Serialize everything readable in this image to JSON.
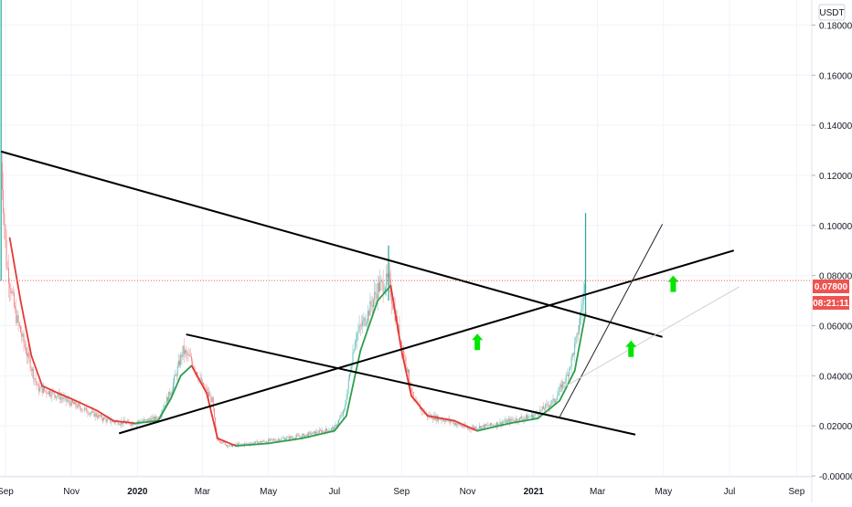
{
  "header": {
    "currency": "USDT"
  },
  "price_tag": {
    "value": "0.07800",
    "countdown": "08:21:11"
  },
  "colors": {
    "up": "#26a69a",
    "down": "#ef5350",
    "ma_up": "#2e9e4f",
    "ma_down": "#e53935",
    "trendline": "#000000",
    "thin_line": "#d0d0d0",
    "arrow": "#00e600",
    "price_line": "#ef5350",
    "grid": "#f0f3fa",
    "axis_text": "#131722"
  },
  "chart_data": {
    "type": "candlestick",
    "title": "",
    "xlabel": "",
    "ylabel": "",
    "x_range": [
      "2019-08-27",
      "2021-09-15"
    ],
    "ylim": [
      0,
      0.19
    ],
    "grid": true,
    "y_ticks": [
      "0.18000",
      "0.16000",
      "0.14000",
      "0.12000",
      "0.10000",
      "0.08000",
      "0.06000",
      "0.04000",
      "0.02000",
      "-0.00000"
    ],
    "y_tick_values": [
      0.18,
      0.16,
      0.14,
      0.12,
      0.1,
      0.08,
      0.06,
      0.04,
      0.02,
      0
    ],
    "x_ticks": [
      {
        "label": "Sep",
        "date": "2019-09-01",
        "bold": false
      },
      {
        "label": "Nov",
        "date": "2019-11-01",
        "bold": false
      },
      {
        "label": "2020",
        "date": "2020-01-01",
        "bold": true
      },
      {
        "label": "Mar",
        "date": "2020-03-01",
        "bold": false
      },
      {
        "label": "May",
        "date": "2020-05-01",
        "bold": false
      },
      {
        "label": "Jul",
        "date": "2020-07-01",
        "bold": false
      },
      {
        "label": "Sep",
        "date": "2020-09-01",
        "bold": false
      },
      {
        "label": "Nov",
        "date": "2020-11-01",
        "bold": false
      },
      {
        "label": "2021",
        "date": "2021-01-01",
        "bold": true
      },
      {
        "label": "Mar",
        "date": "2021-03-01",
        "bold": false
      },
      {
        "label": "May",
        "date": "2021-05-01",
        "bold": false
      },
      {
        "label": "Jul",
        "date": "2021-07-01",
        "bold": false
      },
      {
        "label": "Sep",
        "date": "2021-09-01",
        "bold": false
      }
    ],
    "last_price": 0.078,
    "price_path": [
      {
        "date": "2019-08-28",
        "price": 0.125
      },
      {
        "date": "2019-09-02",
        "price": 0.085
      },
      {
        "date": "2019-09-10",
        "price": 0.065
      },
      {
        "date": "2019-09-20",
        "price": 0.05
      },
      {
        "date": "2019-10-01",
        "price": 0.035
      },
      {
        "date": "2019-10-15",
        "price": 0.033
      },
      {
        "date": "2019-11-01",
        "price": 0.029
      },
      {
        "date": "2019-11-20",
        "price": 0.025
      },
      {
        "date": "2019-12-05",
        "price": 0.022
      },
      {
        "date": "2019-12-25",
        "price": 0.021
      },
      {
        "date": "2020-01-20",
        "price": 0.023
      },
      {
        "date": "2020-02-01",
        "price": 0.034
      },
      {
        "date": "2020-02-12",
        "price": 0.05
      },
      {
        "date": "2020-02-20",
        "price": 0.046
      },
      {
        "date": "2020-03-01",
        "price": 0.036
      },
      {
        "date": "2020-03-10",
        "price": 0.03
      },
      {
        "date": "2020-03-14",
        "price": 0.015
      },
      {
        "date": "2020-03-25",
        "price": 0.012
      },
      {
        "date": "2020-04-15",
        "price": 0.013
      },
      {
        "date": "2020-05-01",
        "price": 0.014
      },
      {
        "date": "2020-06-01",
        "price": 0.016
      },
      {
        "date": "2020-07-01",
        "price": 0.019
      },
      {
        "date": "2020-07-10",
        "price": 0.026
      },
      {
        "date": "2020-07-20",
        "price": 0.055
      },
      {
        "date": "2020-08-01",
        "price": 0.065
      },
      {
        "date": "2020-08-10",
        "price": 0.075
      },
      {
        "date": "2020-08-20",
        "price": 0.078
      },
      {
        "date": "2020-08-28",
        "price": 0.06
      },
      {
        "date": "2020-09-05",
        "price": 0.045
      },
      {
        "date": "2020-09-12",
        "price": 0.03
      },
      {
        "date": "2020-09-25",
        "price": 0.024
      },
      {
        "date": "2020-10-15",
        "price": 0.022
      },
      {
        "date": "2020-11-01",
        "price": 0.019
      },
      {
        "date": "2020-11-20",
        "price": 0.02
      },
      {
        "date": "2020-12-10",
        "price": 0.022
      },
      {
        "date": "2021-01-01",
        "price": 0.024
      },
      {
        "date": "2021-01-20",
        "price": 0.03
      },
      {
        "date": "2021-02-01",
        "price": 0.04
      },
      {
        "date": "2021-02-10",
        "price": 0.055
      },
      {
        "date": "2021-02-18",
        "price": 0.078
      }
    ],
    "ma_path": [
      {
        "date": "2019-09-05",
        "price": 0.095
      },
      {
        "date": "2019-09-15",
        "price": 0.07
      },
      {
        "date": "2019-09-25",
        "price": 0.048
      },
      {
        "date": "2019-10-05",
        "price": 0.036
      },
      {
        "date": "2019-10-20",
        "price": 0.033
      },
      {
        "date": "2019-11-05",
        "price": 0.03
      },
      {
        "date": "2019-11-25",
        "price": 0.026
      },
      {
        "date": "2019-12-10",
        "price": 0.022
      },
      {
        "date": "2019-12-30",
        "price": 0.021
      },
      {
        "date": "2020-01-20",
        "price": 0.022
      },
      {
        "date": "2020-02-01",
        "price": 0.031
      },
      {
        "date": "2020-02-10",
        "price": 0.04
      },
      {
        "date": "2020-02-20",
        "price": 0.044
      },
      {
        "date": "2020-03-05",
        "price": 0.033
      },
      {
        "date": "2020-03-15",
        "price": 0.015
      },
      {
        "date": "2020-04-01",
        "price": 0.012
      },
      {
        "date": "2020-05-01",
        "price": 0.013
      },
      {
        "date": "2020-06-01",
        "price": 0.015
      },
      {
        "date": "2020-07-01",
        "price": 0.018
      },
      {
        "date": "2020-07-12",
        "price": 0.024
      },
      {
        "date": "2020-07-25",
        "price": 0.05
      },
      {
        "date": "2020-08-10",
        "price": 0.07
      },
      {
        "date": "2020-08-22",
        "price": 0.076
      },
      {
        "date": "2020-09-01",
        "price": 0.05
      },
      {
        "date": "2020-09-10",
        "price": 0.032
      },
      {
        "date": "2020-09-25",
        "price": 0.024
      },
      {
        "date": "2020-10-20",
        "price": 0.022
      },
      {
        "date": "2020-11-10",
        "price": 0.018
      },
      {
        "date": "2020-12-10",
        "price": 0.021
      },
      {
        "date": "2021-01-05",
        "price": 0.023
      },
      {
        "date": "2021-01-25",
        "price": 0.03
      },
      {
        "date": "2021-02-08",
        "price": 0.042
      },
      {
        "date": "2021-02-18",
        "price": 0.065
      }
    ],
    "spikes": [
      {
        "date": "2019-08-28",
        "high": 0.19,
        "low": 0.078
      },
      {
        "date": "2020-08-20",
        "high": 0.092,
        "low": 0.07
      },
      {
        "date": "2021-02-18",
        "high": 0.105,
        "low": 0.065
      }
    ],
    "trendlines": [
      {
        "from": {
          "date": "2019-08-28",
          "price": 0.1295
        },
        "to": {
          "date": "2021-04-30",
          "price": 0.0555
        },
        "style": "bold"
      },
      {
        "from": {
          "date": "2020-02-15",
          "price": 0.0565
        },
        "to": {
          "date": "2021-04-05",
          "price": 0.0165
        },
        "style": "bold"
      },
      {
        "from": {
          "date": "2019-12-15",
          "price": 0.017
        },
        "to": {
          "date": "2021-07-05",
          "price": 0.09
        },
        "style": "bold"
      },
      {
        "from": {
          "date": "2021-01-25",
          "price": 0.0235
        },
        "to": {
          "date": "2021-04-30",
          "price": 0.1005
        },
        "style": "thin-dark"
      },
      {
        "from": {
          "date": "2021-01-25",
          "price": 0.0345
        },
        "to": {
          "date": "2021-07-10",
          "price": 0.0755
        },
        "style": "thin-light"
      }
    ],
    "arrows": [
      {
        "date": "2020-11-10",
        "price": 0.0535
      },
      {
        "date": "2021-04-01",
        "price": 0.0508
      },
      {
        "date": "2021-05-10",
        "price": 0.0767
      }
    ]
  }
}
